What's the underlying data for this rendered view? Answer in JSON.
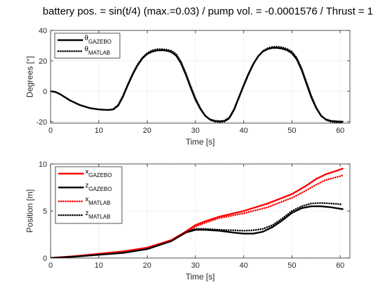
{
  "figure": {
    "title": "battery pos. = sin(t/4) (max.=0.03) / pump vol. = -0.0001576 / Thrust = 1"
  },
  "chart_data": [
    {
      "type": "line",
      "xlabel": "Time [s]",
      "ylabel": "Degrees [°]",
      "xlim": [
        0,
        62
      ],
      "ylim": [
        -21,
        40
      ],
      "xticks": [
        0,
        10,
        20,
        30,
        40,
        50,
        60
      ],
      "yticks": [
        -20,
        0,
        20,
        40
      ],
      "grid": true,
      "legend": "top-left",
      "series": [
        {
          "name": "θGAZEBO",
          "label_main": "θ",
          "label_sub": "GAZEBO",
          "color": "#000000",
          "style": "solid",
          "x": [
            0,
            1,
            2,
            3,
            4,
            5,
            6,
            7,
            8,
            9,
            10,
            11,
            12,
            13,
            14,
            15,
            16,
            17,
            18,
            19,
            20,
            21,
            22,
            23,
            24,
            25,
            26,
            27,
            28,
            29,
            30,
            31,
            32,
            33,
            34,
            35,
            36,
            37,
            38,
            39,
            40,
            41,
            42,
            43,
            44,
            45,
            46,
            47,
            48,
            49,
            50,
            51,
            52,
            53,
            54,
            55,
            56,
            57,
            58,
            59,
            60,
            60.5
          ],
          "y": [
            0,
            -0.5,
            -2,
            -4,
            -6,
            -7.5,
            -9,
            -10,
            -11,
            -11.5,
            -12,
            -12.2,
            -12.3,
            -12,
            -9.5,
            -3.5,
            4,
            11,
            17,
            21.5,
            24.5,
            26,
            26.8,
            27,
            26.7,
            25.8,
            23.5,
            18.5,
            11,
            2.5,
            -5.5,
            -11.5,
            -16,
            -18.5,
            -19.5,
            -19.8,
            -19.5,
            -17.5,
            -12,
            -4,
            4,
            11.5,
            18,
            23,
            26.2,
            27.8,
            28.5,
            28.5,
            28,
            27,
            25,
            21,
            14,
            5,
            -4,
            -11,
            -16,
            -18.5,
            -19.5,
            -19.8,
            -20,
            -20
          ]
        },
        {
          "name": "θMATLAB",
          "label_main": "θ",
          "label_sub": "MATLAB",
          "color": "#000000",
          "style": "dotted",
          "x": [
            0,
            1,
            2,
            3,
            4,
            5,
            6,
            7,
            8,
            9,
            10,
            11,
            12,
            13,
            14,
            15,
            16,
            17,
            18,
            19,
            20,
            21,
            22,
            23,
            24,
            25,
            26,
            27,
            28,
            29,
            30,
            31,
            32,
            33,
            34,
            35,
            36,
            37,
            38,
            39,
            40,
            41,
            42,
            43,
            44,
            45,
            46,
            47,
            48,
            49,
            50,
            51,
            52,
            53,
            54,
            55,
            56,
            57,
            58,
            59,
            60,
            60.5
          ],
          "y": [
            0,
            -0.5,
            -2,
            -4,
            -6,
            -7.5,
            -9,
            -10,
            -11,
            -11.5,
            -12,
            -12.2,
            -12.3,
            -11.8,
            -9,
            -3,
            4.5,
            11.5,
            17.5,
            22,
            25,
            26.8,
            27.6,
            27.7,
            27.4,
            26.6,
            24.5,
            19.5,
            12,
            3.5,
            -4.5,
            -11,
            -16,
            -18.8,
            -20,
            -20.3,
            -20,
            -18,
            -12.5,
            -4.5,
            3.5,
            11,
            17.8,
            23,
            26.5,
            28.3,
            29.2,
            29.3,
            28.8,
            27.8,
            26,
            22,
            15,
            6,
            -3,
            -10.5,
            -16,
            -18.8,
            -20,
            -20.5,
            -20.8,
            -20.8
          ]
        }
      ]
    },
    {
      "type": "line",
      "xlabel": "Time [s]",
      "ylabel": "Position [m]",
      "xlim": [
        0,
        62
      ],
      "ylim": [
        0,
        10
      ],
      "xticks": [
        0,
        10,
        20,
        30,
        40,
        50,
        60
      ],
      "yticks": [
        0,
        5,
        10
      ],
      "grid": true,
      "legend": "top-left",
      "series": [
        {
          "name": "xGAZEBO",
          "label_main": "x",
          "label_sub": "GAZEBO",
          "color": "#ff0000",
          "style": "solid",
          "x": [
            0,
            5,
            10,
            15,
            20,
            25,
            28,
            30,
            32,
            35,
            40,
            45,
            50,
            53,
            55,
            57,
            60,
            60.5
          ],
          "y": [
            0,
            0.2,
            0.45,
            0.7,
            1.1,
            1.9,
            2.8,
            3.5,
            3.9,
            4.4,
            5.0,
            5.8,
            6.8,
            7.7,
            8.4,
            8.9,
            9.4,
            9.5
          ]
        },
        {
          "name": "zGAZEBO",
          "label_main": "z",
          "label_sub": "GAZEBO",
          "color": "#000000",
          "style": "solid",
          "x": [
            0,
            5,
            10,
            15,
            20,
            25,
            28,
            30,
            32,
            35,
            38,
            40,
            42,
            44,
            46,
            48,
            50,
            52,
            54,
            56,
            58,
            60.5
          ],
          "y": [
            0,
            0.15,
            0.35,
            0.55,
            0.95,
            1.8,
            2.7,
            3.0,
            3.0,
            2.9,
            2.7,
            2.6,
            2.6,
            2.8,
            3.3,
            4.0,
            4.8,
            5.3,
            5.5,
            5.5,
            5.4,
            5.2
          ]
        },
        {
          "name": "xMATLAB",
          "label_main": "x",
          "label_sub": "MATLAB",
          "color": "#ff0000",
          "style": "dotted",
          "x": [
            0,
            5,
            10,
            15,
            20,
            25,
            28,
            30,
            32,
            35,
            40,
            45,
            50,
            53,
            55,
            57,
            60,
            60.5
          ],
          "y": [
            0,
            0.18,
            0.42,
            0.68,
            1.08,
            1.85,
            2.7,
            3.35,
            3.75,
            4.25,
            4.75,
            5.4,
            6.4,
            7.2,
            7.8,
            8.3,
            8.7,
            8.8
          ]
        },
        {
          "name": "zMATLAB",
          "label_main": "z",
          "label_sub": "MATLAB",
          "color": "#000000",
          "style": "dotted",
          "x": [
            0,
            5,
            10,
            15,
            20,
            25,
            28,
            30,
            32,
            35,
            38,
            40,
            42,
            44,
            46,
            48,
            50,
            52,
            54,
            56,
            58,
            60.5
          ],
          "y": [
            0,
            0.15,
            0.35,
            0.55,
            0.95,
            1.8,
            2.75,
            3.1,
            3.1,
            3.0,
            2.95,
            2.9,
            2.95,
            3.1,
            3.5,
            4.2,
            5.0,
            5.5,
            5.8,
            5.85,
            5.8,
            5.7
          ]
        }
      ]
    }
  ]
}
